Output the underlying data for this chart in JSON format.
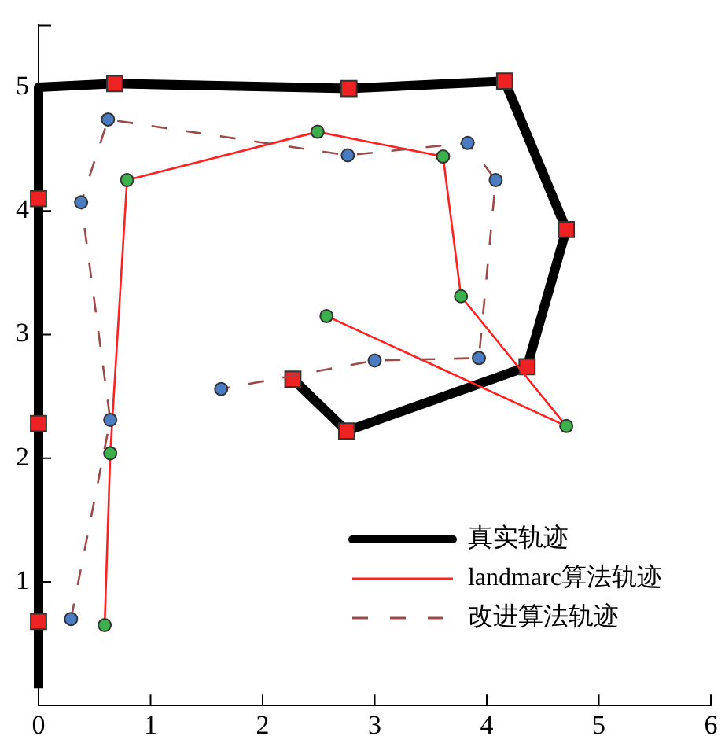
{
  "chart_data": {
    "type": "line",
    "xlim": [
      0,
      6
    ],
    "ylim": [
      0,
      5.5
    ],
    "xticks": [
      0,
      1,
      2,
      3,
      4,
      5,
      6
    ],
    "yticks": [
      1,
      2,
      3,
      4,
      5,
      {
        "value": 5.5,
        "label": null
      }
    ],
    "grid": false,
    "legend": "bottom right",
    "series": [
      {
        "name": "真实轨迹",
        "color": "#000000",
        "marker": "square",
        "line_style": "solid",
        "x": [
          0,
          0,
          0,
          0,
          0,
          0.68,
          2.77,
          4.16,
          4.71,
          4.36,
          2.75,
          2.27
        ],
        "values": [
          0.14,
          0.68,
          2.28,
          4.1,
          5,
          5.03,
          4.99,
          5.05,
          3.85,
          2.74,
          2.22,
          2.64
        ],
        "colors": [
          null,
          "#ee2222",
          "#ee2222",
          "#ee2222",
          null,
          "#ee2222",
          "#ee2222",
          "#ee2222",
          "#ee2222",
          "#ee2222",
          "#ee2222",
          "#ee2222"
        ]
      },
      {
        "name": "landmarc算法轨迹",
        "color": "#ff2020",
        "marker": "circle",
        "line_style": "solid",
        "x": [
          0.59,
          0.64,
          0.79,
          2.49,
          3.61,
          3.77,
          4.71,
          2.57
        ],
        "values": [
          0.65,
          2.04,
          4.25,
          4.64,
          4.44,
          3.31,
          2.26,
          3.15
        ],
        "colors": [
          "#3cb04a",
          "#3cb04a",
          "#3cb04a",
          "#3cb04a",
          "#3cb04a",
          "#3cb04a",
          "#3cb04a",
          "#3cb04a"
        ]
      },
      {
        "name": "改进算法轨迹",
        "color": "#9b4a4a",
        "marker": "circle",
        "line_style": "dashed",
        "x": [
          0.29,
          0.64,
          0.38,
          0.62,
          2.76,
          3.83,
          4.08,
          3.93,
          3.0,
          1.63
        ],
        "values": [
          0.7,
          2.31,
          4.07,
          4.74,
          4.45,
          4.55,
          4.25,
          2.81,
          2.79,
          2.56
        ],
        "colors": [
          "#4a7cc4",
          "#4a7cc4",
          "#4a7cc4",
          "#4a7cc4",
          "#4a7cc4",
          "#4a7cc4",
          "#4a7cc4",
          "#4a7cc4",
          "#4a7cc4",
          "#4a7cc4"
        ]
      }
    ]
  }
}
